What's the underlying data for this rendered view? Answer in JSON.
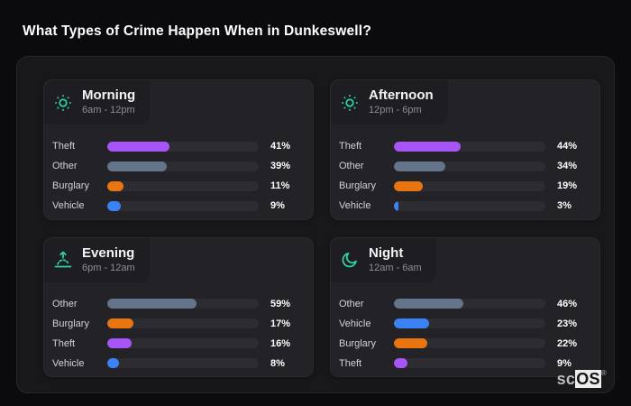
{
  "page": {
    "title": "What Types of Crime Happen When in Dunkeswell?",
    "watermark": {
      "prefix": "sc",
      "suffix": "OS",
      "registered": "®"
    }
  },
  "colors": {
    "page_background": "#0b0b0d",
    "container_background": "#18181b",
    "panel_background": "#232327",
    "header_chip_background": "#1e1e22",
    "bar_track": "#2c2c31",
    "icon_accent": "#2ed3a2",
    "title_text": "#ffffff",
    "subtitle_text": "#8d8e95",
    "label_text": "#d2d3d7",
    "value_text": "#ffffff",
    "categories": {
      "Theft": "#a855f7",
      "Other": "#64748b",
      "Burglary": "#e8750f",
      "Vehicle": "#3b82f6"
    }
  },
  "chart_data": [
    {
      "type": "bar",
      "orientation": "horizontal",
      "title": "Morning",
      "subtitle": "6am - 12pm",
      "icon": "sun",
      "unit": "%",
      "xlim": [
        0,
        100
      ],
      "categories": [
        "Theft",
        "Other",
        "Burglary",
        "Vehicle"
      ],
      "values": [
        41,
        39,
        11,
        9
      ]
    },
    {
      "type": "bar",
      "orientation": "horizontal",
      "title": "Afternoon",
      "subtitle": "12pm - 6pm",
      "icon": "sun",
      "unit": "%",
      "xlim": [
        0,
        100
      ],
      "categories": [
        "Theft",
        "Other",
        "Burglary",
        "Vehicle"
      ],
      "values": [
        44,
        34,
        19,
        3
      ]
    },
    {
      "type": "bar",
      "orientation": "horizontal",
      "title": "Evening",
      "subtitle": "6pm - 12am",
      "icon": "sunset",
      "unit": "%",
      "xlim": [
        0,
        100
      ],
      "categories": [
        "Other",
        "Burglary",
        "Theft",
        "Vehicle"
      ],
      "values": [
        59,
        17,
        16,
        8
      ]
    },
    {
      "type": "bar",
      "orientation": "horizontal",
      "title": "Night",
      "subtitle": "12am - 6am",
      "icon": "moon",
      "unit": "%",
      "xlim": [
        0,
        100
      ],
      "categories": [
        "Other",
        "Vehicle",
        "Burglary",
        "Theft"
      ],
      "values": [
        46,
        23,
        22,
        9
      ]
    }
  ]
}
